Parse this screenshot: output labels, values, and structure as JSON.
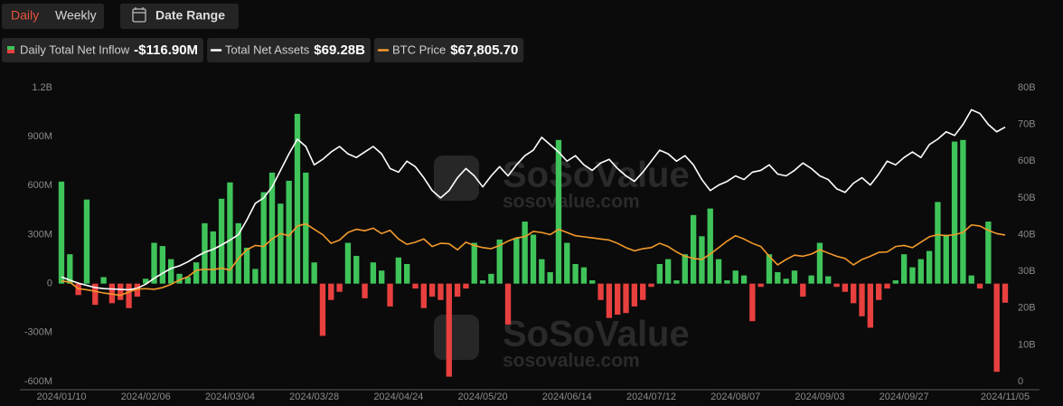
{
  "toolbar": {
    "tabs": [
      "Daily",
      "Weekly"
    ],
    "date_range": "Date Range"
  },
  "watermark": {
    "brand": "SoSoValue",
    "site": "sosovalue.com"
  },
  "chart_data": {
    "type": "bar",
    "categories": [
      "2024/01/10",
      null,
      null,
      null,
      null,
      null,
      null,
      null,
      null,
      null,
      "2024/02/06",
      null,
      null,
      null,
      null,
      null,
      null,
      null,
      null,
      null,
      "2024/03/04",
      null,
      null,
      null,
      null,
      null,
      null,
      null,
      null,
      null,
      "2024/03/28",
      null,
      null,
      null,
      null,
      null,
      null,
      null,
      null,
      null,
      "2024/04/24",
      null,
      null,
      null,
      null,
      null,
      null,
      null,
      null,
      null,
      "2024/05/20",
      null,
      null,
      null,
      null,
      null,
      null,
      null,
      null,
      null,
      "2024/06/14",
      null,
      null,
      null,
      null,
      null,
      null,
      null,
      null,
      null,
      "2024/07/12",
      null,
      null,
      null,
      null,
      null,
      null,
      null,
      null,
      null,
      "2024/08/07",
      null,
      null,
      null,
      null,
      null,
      null,
      null,
      null,
      null,
      "2024/09/03",
      null,
      null,
      null,
      null,
      null,
      null,
      null,
      null,
      null,
      "2024/09/27",
      null,
      null,
      null,
      null,
      null,
      null,
      null,
      null,
      null,
      null,
      null,
      "2024/11/05"
    ],
    "series": [
      {
        "name": "Daily Total Net Inflow",
        "type": "bar",
        "axis": "y",
        "legend_value": "-$116.90M",
        "color": "#3fc45a",
        "negative_color": "#e8403f",
        "values": [
          625,
          180,
          -70,
          515,
          -130,
          40,
          -120,
          -100,
          -150,
          -80,
          30,
          250,
          230,
          150,
          60,
          40,
          130,
          370,
          320,
          520,
          620,
          370,
          220,
          90,
          560,
          680,
          490,
          630,
          1040,
          680,
          130,
          -320,
          -100,
          -50,
          250,
          170,
          -90,
          130,
          80,
          -140,
          160,
          120,
          -30,
          -150,
          -80,
          -100,
          -570,
          -80,
          -30,
          250,
          20,
          60,
          270,
          -250,
          280,
          380,
          300,
          150,
          70,
          880,
          250,
          120,
          100,
          20,
          -100,
          -210,
          -190,
          -180,
          -140,
          -100,
          -20,
          120,
          150,
          20,
          180,
          420,
          290,
          460,
          150,
          20,
          80,
          50,
          -230,
          -20,
          180,
          70,
          30,
          80,
          -80,
          50,
          250,
          45,
          -20,
          -50,
          -120,
          -200,
          -270,
          -100,
          -30,
          20,
          180,
          100,
          150,
          200,
          500,
          300,
          870,
          880,
          50,
          -30,
          380,
          -540,
          -116.9
        ]
      },
      {
        "name": "Total Net Assets",
        "type": "line",
        "axis": "y2",
        "legend_value": "$69.28B",
        "color": "#ffffff",
        "values": [
          28.5,
          27.6,
          26.8,
          26.2,
          25.6,
          25.3,
          25.2,
          25.1,
          25.0,
          25.4,
          26.5,
          28.1,
          29.5,
          30.8,
          31.5,
          32.6,
          34.0,
          35.2,
          36.0,
          37.2,
          38.5,
          40.0,
          44.0,
          48.5,
          50.0,
          53.0,
          57.5,
          62.0,
          66.0,
          64.0,
          59.0,
          60.5,
          62.5,
          64.0,
          62.0,
          61.0,
          62.5,
          64.0,
          62.0,
          58.0,
          57.0,
          60.0,
          58.5,
          55.5,
          52.0,
          50.0,
          52.0,
          55.5,
          58.0,
          56.0,
          53.0,
          56.0,
          58.5,
          56.0,
          59.0,
          61.5,
          63.0,
          66.5,
          64.5,
          62.5,
          60.0,
          61.5,
          59.0,
          57.5,
          59.5,
          60.5,
          58.0,
          56.0,
          54.5,
          57.0,
          60.0,
          63.0,
          62.0,
          60.0,
          61.5,
          59.0,
          55.0,
          52.0,
          53.5,
          54.5,
          56.0,
          55.0,
          57.0,
          57.5,
          59.0,
          56.5,
          56.0,
          57.5,
          59.5,
          58.0,
          56.0,
          55.0,
          52.5,
          51.5,
          54.0,
          55.5,
          53.5,
          56.5,
          60.0,
          59.0,
          61.0,
          62.5,
          61.0,
          64.5,
          66.0,
          68.0,
          67.0,
          70.0,
          74.0,
          73.0,
          70.0,
          68.0,
          69.28
        ]
      },
      {
        "name": "BTC Price",
        "type": "line",
        "axis": "y3",
        "legend_value": "$67,805.70",
        "color": "#f39a2b",
        "values": [
          46600,
          46000,
          43000,
          42500,
          41800,
          41000,
          40500,
          39900,
          41500,
          42800,
          43000,
          42700,
          43500,
          45000,
          47000,
          48500,
          51500,
          52000,
          51800,
          52500,
          51600,
          57000,
          61000,
          63000,
          62500,
          66000,
          68500,
          67500,
          72000,
          73000,
          70500,
          68000,
          64000,
          65500,
          69000,
          70500,
          69800,
          71000,
          68500,
          70000,
          66000,
          63500,
          64500,
          66000,
          62500,
          64000,
          63800,
          61000,
          64500,
          63000,
          62000,
          61500,
          63000,
          65000,
          66500,
          67000,
          69500,
          69000,
          68000,
          70500,
          69000,
          67500,
          67000,
          66500,
          66000,
          65500,
          64000,
          62000,
          60500,
          61500,
          62000,
          64000,
          62500,
          60000,
          58000,
          57000,
          56500,
          59000,
          62000,
          65000,
          67500,
          66000,
          64000,
          62500,
          58000,
          54000,
          56500,
          58500,
          58000,
          59000,
          61000,
          59500,
          58000,
          57000,
          54000,
          56500,
          58000,
          59800,
          60000,
          62500,
          63000,
          62000,
          64500,
          67000,
          68000,
          67500,
          68000,
          69000,
          72500,
          72000,
          70000,
          68500,
          67805.7
        ]
      }
    ],
    "ylim": [
      -600,
      1200
    ],
    "yticks": [
      {
        "value": -600,
        "label": "-600M"
      },
      {
        "value": -300,
        "label": "-300M"
      },
      0,
      {
        "value": 300,
        "label": "300M"
      },
      {
        "value": 600,
        "label": "600M"
      },
      {
        "value": 900,
        "label": "900M"
      },
      {
        "value": 1200,
        "label": "1.2B"
      }
    ],
    "y2lim": [
      0,
      80
    ],
    "y2ticks": [
      0,
      {
        "value": 10,
        "label": "10B"
      },
      {
        "value": 20,
        "label": "20B"
      },
      {
        "value": 30,
        "label": "30B"
      },
      {
        "value": 40,
        "label": "40B"
      },
      {
        "value": 50,
        "label": "50B"
      },
      {
        "value": 60,
        "label": "60B"
      },
      {
        "value": 70,
        "label": "70B"
      },
      {
        "value": 80,
        "label": "80B"
      }
    ],
    "y3lim": [
      0,
      136000
    ],
    "grid": false
  }
}
